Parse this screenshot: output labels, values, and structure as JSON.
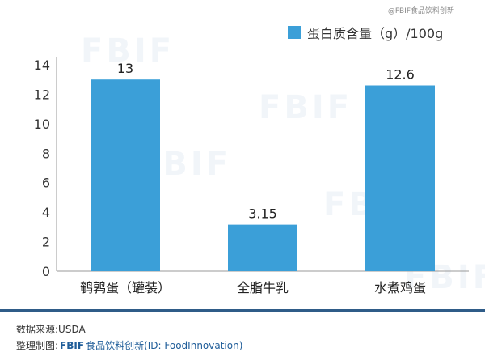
{
  "watermark_top": "@FBIF食品饮料创新",
  "footer": {
    "source": "数据来源:USDA",
    "credit_prefix": "整理制图:",
    "brand": "FBIF",
    "credit_suffix": "食品饮料创新",
    "credit_id": "(ID: FoodInnovation)"
  },
  "chart_data": {
    "type": "bar",
    "categories": [
      "鹌鹑蛋（罐装）",
      "全脂牛乳",
      "水煮鸡蛋"
    ],
    "series": [
      {
        "name": "蛋白质含量（g）/100g",
        "values": [
          13,
          3.15,
          12.6
        ],
        "color": "#3b9fd8"
      }
    ],
    "data_labels": [
      "13",
      "3.15",
      "12.6"
    ],
    "ylim": [
      0,
      14
    ],
    "yticks": [
      0,
      2,
      4,
      6,
      8,
      10,
      12,
      14
    ],
    "grid": false,
    "legend_position": "top-right"
  }
}
